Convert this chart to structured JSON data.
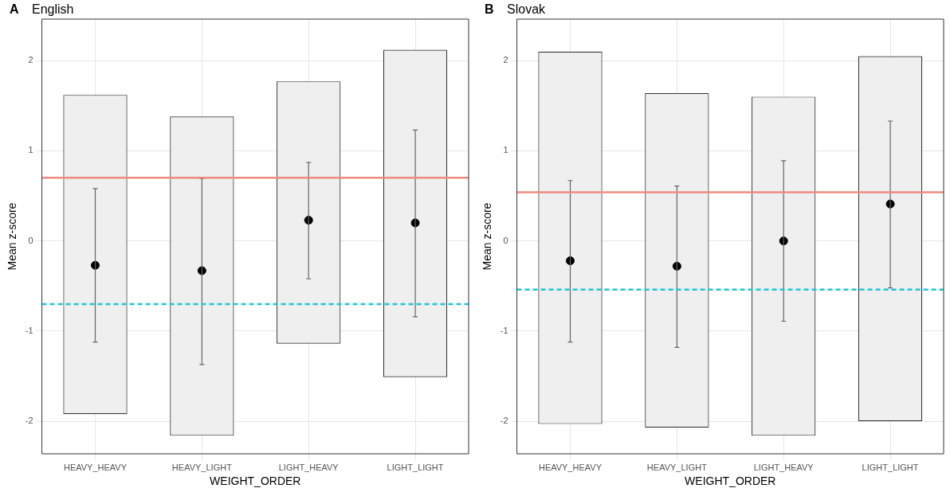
{
  "chart_data": [
    {
      "type": "bar",
      "title": "English",
      "annotations": [
        "A"
      ],
      "xlabel": "WEIGHT_ORDER",
      "ylabel": "Mean z-score",
      "categories": [
        "HEAVY_HEAVY",
        "HEAVY_LIGHT",
        "LIGHT_HEAVY",
        "LIGHT_LIGHT"
      ],
      "ylim": [
        -2.36,
        2.46
      ],
      "yticks": [
        -2,
        -1,
        0,
        1,
        2
      ],
      "grid": true,
      "legend": false,
      "series": [
        {
          "color": "#efefef",
          "base": [
            -1.92,
            -2.16,
            -1.14,
            -1.51
          ],
          "values": [
            3.54,
            3.54,
            2.91,
            3.63
          ]
        },
        {
          "type": "scatter",
          "color": "#000000",
          "x": [
            "HEAVY_HEAVY",
            "HEAVY_LIGHT",
            "LIGHT_HEAVY",
            "LIGHT_LIGHT"
          ],
          "values": [
            -0.27,
            -0.33,
            0.23,
            0.2
          ],
          "errors": [
            [
              -1.12,
              0.58
            ],
            [
              -1.37,
              0.69
            ],
            [
              -0.42,
              0.87
            ],
            [
              -0.84,
              1.23
            ]
          ]
        }
      ],
      "ref_lines": [
        {
          "axis": "y",
          "value": 0.7,
          "color": "#f08a84",
          "line_style": "solid"
        },
        {
          "axis": "y",
          "value": -0.7,
          "color": "#1ec8d0",
          "line_style": "dashed"
        }
      ]
    },
    {
      "type": "bar",
      "title": "Slovak",
      "annotations": [
        "B"
      ],
      "xlabel": "WEIGHT_ORDER",
      "ylabel": "Mean z-score",
      "categories": [
        "HEAVY_HEAVY",
        "HEAVY_LIGHT",
        "LIGHT_HEAVY",
        "LIGHT_LIGHT"
      ],
      "ylim": [
        -2.36,
        2.46
      ],
      "yticks": [
        -2,
        -1,
        0,
        1,
        2
      ],
      "grid": true,
      "legend": false,
      "series": [
        {
          "color": "#efefef",
          "base": [
            -2.03,
            -2.07,
            -2.16,
            -2.0
          ],
          "values": [
            4.13,
            3.71,
            3.76,
            4.05
          ]
        },
        {
          "type": "scatter",
          "color": "#000000",
          "x": [
            "HEAVY_HEAVY",
            "HEAVY_LIGHT",
            "LIGHT_HEAVY",
            "LIGHT_LIGHT"
          ],
          "values": [
            -0.22,
            -0.28,
            0.0,
            0.41
          ],
          "errors": [
            [
              -1.12,
              0.67
            ],
            [
              -1.18,
              0.61
            ],
            [
              -0.89,
              0.89
            ],
            [
              -0.52,
              1.33
            ]
          ]
        }
      ],
      "ref_lines": [
        {
          "axis": "y",
          "value": 0.54,
          "color": "#f08a84",
          "line_style": "solid"
        },
        {
          "axis": "y",
          "value": -0.54,
          "color": "#1ec8d0",
          "line_style": "dashed"
        }
      ]
    }
  ]
}
